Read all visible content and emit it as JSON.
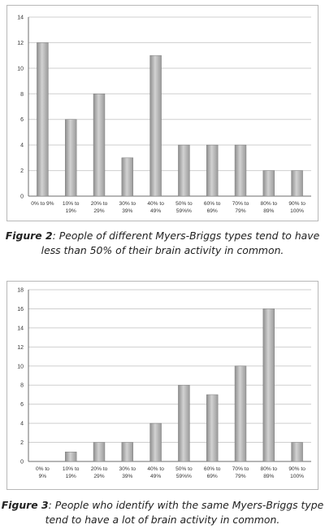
{
  "chart_data": [
    {
      "type": "bar",
      "categories": [
        [
          "0% to 9%",
          ""
        ],
        [
          "10% to",
          "19%"
        ],
        [
          "20% to",
          "29%"
        ],
        [
          "30% to",
          "39%"
        ],
        [
          "40% to",
          "49%"
        ],
        [
          "50% to",
          "59%%"
        ],
        [
          "60% to",
          "69%"
        ],
        [
          "70% to",
          "79%"
        ],
        [
          "80% to",
          "89%"
        ],
        [
          "90% to",
          "100%"
        ]
      ],
      "values": [
        12,
        6,
        8,
        3,
        11,
        4,
        4,
        4,
        2,
        2
      ],
      "ylim": [
        0,
        14
      ],
      "yticks": [
        0,
        2,
        4,
        6,
        8,
        10,
        12,
        14
      ],
      "grid": true,
      "bar_color": "#a6a6a6"
    },
    {
      "type": "bar",
      "categories": [
        [
          "0% to",
          "9%"
        ],
        [
          "10% to",
          "19%"
        ],
        [
          "20% to",
          "29%"
        ],
        [
          "30% to",
          "39%"
        ],
        [
          "40% to",
          "49%"
        ],
        [
          "50% to",
          "59%%"
        ],
        [
          "60% to",
          "69%"
        ],
        [
          "70% to",
          "79%"
        ],
        [
          "80% to",
          "89%"
        ],
        [
          "90% to",
          "100%"
        ]
      ],
      "values": [
        0,
        1,
        2,
        2,
        4,
        8,
        7,
        10,
        16,
        2
      ],
      "ylim": [
        0,
        18
      ],
      "yticks": [
        0,
        2,
        4,
        6,
        8,
        10,
        12,
        14,
        16,
        18
      ],
      "grid": true,
      "bar_color": "#a6a6a6"
    }
  ],
  "captions": [
    {
      "label": "Figure 2",
      "line1": ": People of different Myers-Briggs types tend to have",
      "line2": "less than 50% of their brain activity in common."
    },
    {
      "label": "Figure 3",
      "line1": ": People who identify with the same Myers-Briggs type",
      "line2": "tend to have a lot of brain activity in common."
    }
  ]
}
